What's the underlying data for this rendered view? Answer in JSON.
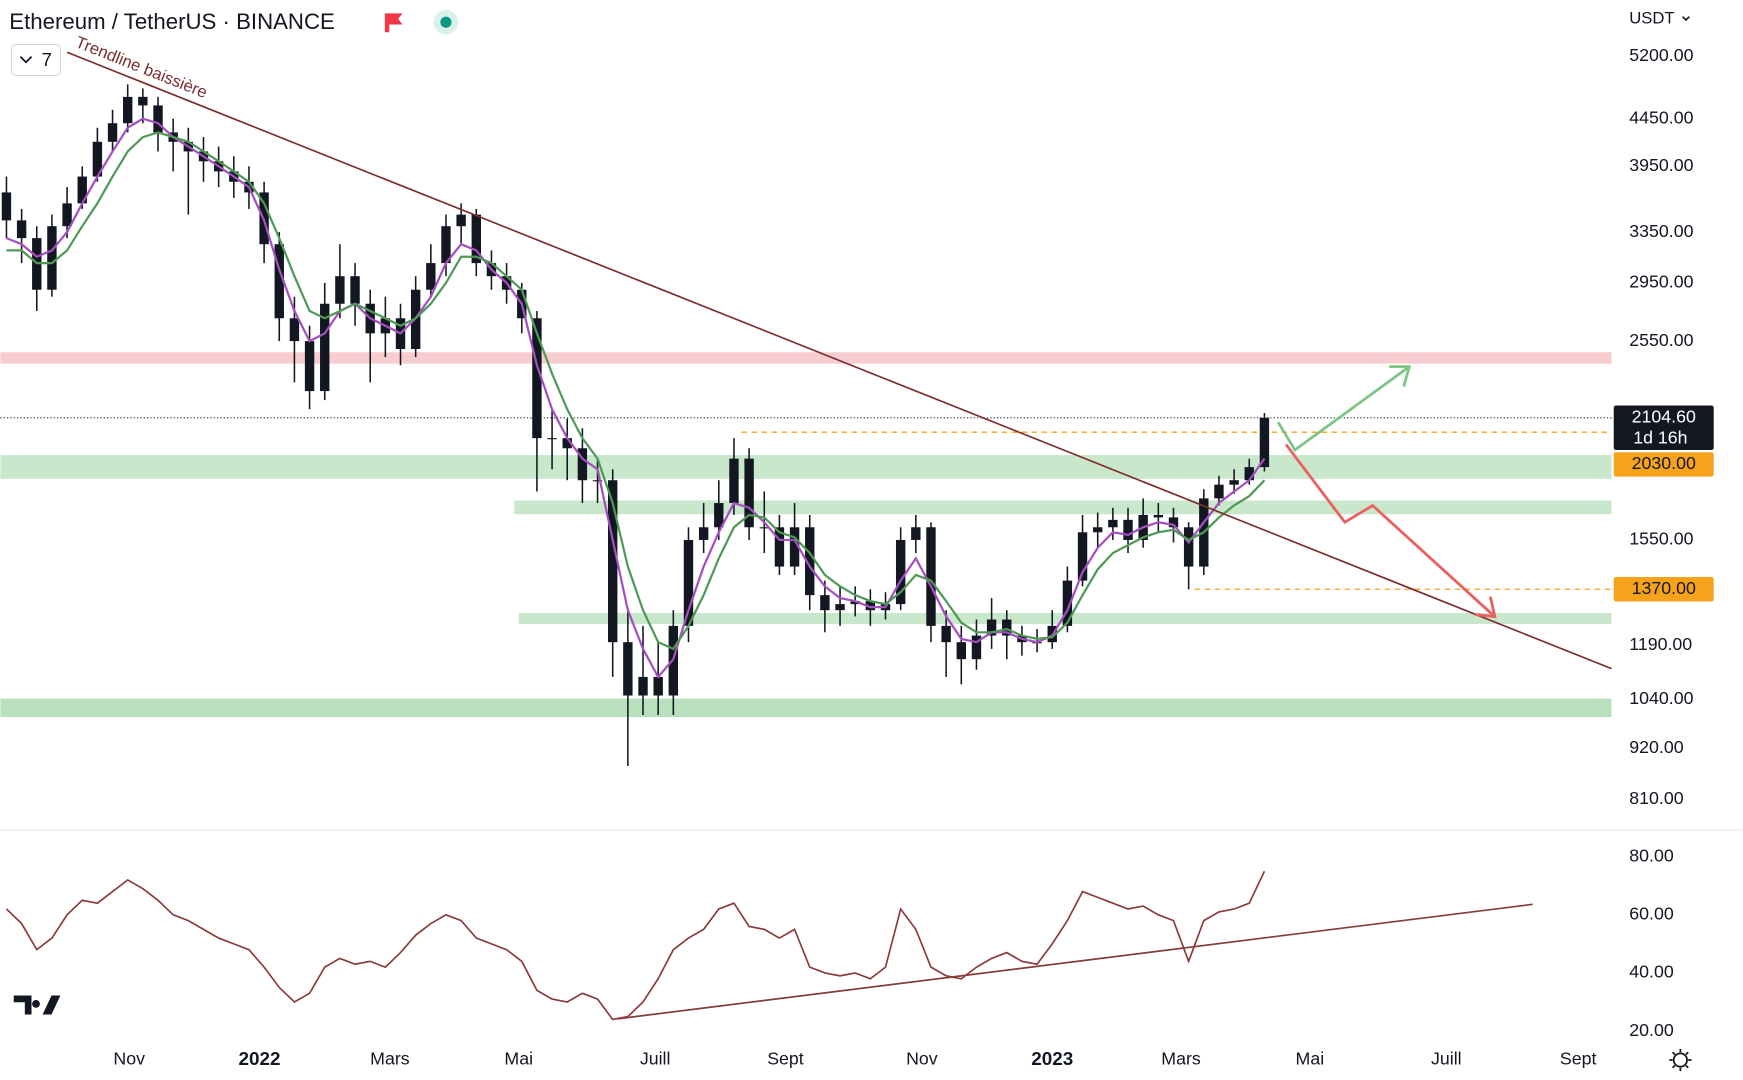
{
  "toolbar": {
    "indicators_count": "7",
    "currency": "USDT"
  },
  "chart_data": [
    {
      "type": "candlestick",
      "title": "Ethereum / TetherUS · BINANCE",
      "log_scale": true,
      "grid": false,
      "color": "#131722",
      "categories": [
        null,
        null,
        null,
        null,
        null,
        null,
        null,
        null,
        null,
        null,
        null,
        null,
        null,
        null,
        null,
        null,
        null,
        null,
        null,
        null,
        null,
        null,
        null,
        null,
        null,
        null,
        null,
        null,
        null,
        null,
        null,
        null,
        null,
        null,
        null,
        null,
        null,
        null,
        null,
        null,
        null,
        null,
        null,
        null,
        null,
        null,
        null,
        null,
        null,
        null,
        null,
        null,
        null,
        null,
        null,
        null,
        null,
        null,
        null,
        null,
        null,
        null,
        null,
        null,
        null,
        null,
        null,
        null,
        null,
        null,
        null,
        null,
        null,
        null,
        null,
        null,
        null,
        null,
        null,
        null,
        null,
        null,
        null,
        null
      ],
      "open": [
        3700,
        3450,
        3300,
        2900,
        3400,
        3600,
        3850,
        4200,
        4400,
        4700,
        4600,
        4300,
        4200,
        4100,
        4000,
        3900,
        3800,
        3700,
        3250,
        2700,
        2550,
        2250,
        2800,
        3000,
        2800,
        2600,
        2700,
        2500,
        2900,
        3100,
        3400,
        3500,
        3100,
        3000,
        2900,
        2700,
        2000,
        2000,
        1950,
        1800,
        1800,
        1200,
        1050,
        1100,
        1050,
        1250,
        1550,
        1600,
        1700,
        1900,
        1600,
        1600,
        1450,
        1600,
        1350,
        1300,
        1320,
        1330,
        1300,
        1320,
        1550,
        1600,
        1250,
        1200,
        1150,
        1220,
        1270,
        1220,
        1200,
        1200,
        1250,
        1400,
        1580,
        1600,
        1630,
        1550,
        1650,
        1640,
        1600,
        1450,
        1720,
        1780,
        1800,
        1860
      ],
      "high": [
        3850,
        3550,
        3400,
        3500,
        3750,
        3950,
        4350,
        4550,
        4850,
        4800,
        4700,
        4450,
        4350,
        4250,
        4150,
        4050,
        3950,
        3800,
        3350,
        2850,
        2650,
        2950,
        3250,
        3100,
        2900,
        2850,
        2800,
        3000,
        3250,
        3500,
        3600,
        3550,
        3200,
        3100,
        2950,
        2750,
        2150,
        2100,
        2050,
        1900,
        1850,
        1300,
        1250,
        1200,
        1300,
        1600,
        1700,
        1800,
        2000,
        1950,
        1750,
        1650,
        1700,
        1650,
        1400,
        1380,
        1380,
        1370,
        1360,
        1600,
        1650,
        1620,
        1300,
        1250,
        1270,
        1340,
        1300,
        1250,
        1240,
        1300,
        1450,
        1650,
        1660,
        1680,
        1680,
        1720,
        1700,
        1680,
        1620,
        1760,
        1820,
        1850,
        1900,
        2130
      ],
      "low": [
        3300,
        3100,
        2750,
        2850,
        3300,
        3550,
        3800,
        4100,
        4300,
        4400,
        4100,
        3900,
        3500,
        3800,
        3750,
        3650,
        3550,
        3100,
        2550,
        2300,
        2150,
        2200,
        2700,
        2650,
        2300,
        2450,
        2400,
        2450,
        2850,
        3000,
        3250,
        3000,
        2900,
        2800,
        2600,
        1750,
        1850,
        1800,
        1700,
        1700,
        1100,
        880,
        1000,
        1000,
        1000,
        1200,
        1500,
        1550,
        1650,
        1550,
        1500,
        1420,
        1420,
        1300,
        1230,
        1250,
        1280,
        1250,
        1270,
        1300,
        1500,
        1200,
        1100,
        1080,
        1120,
        1180,
        1150,
        1160,
        1170,
        1180,
        1230,
        1380,
        1520,
        1550,
        1500,
        1520,
        1580,
        1540,
        1370,
        1420,
        1690,
        1740,
        1780,
        1840
      ],
      "close": [
        3450,
        3300,
        2900,
        3400,
        3600,
        3850,
        4200,
        4400,
        4700,
        4600,
        4300,
        4200,
        4100,
        4000,
        3900,
        3800,
        3700,
        3250,
        2700,
        2550,
        2250,
        2800,
        3000,
        2800,
        2600,
        2700,
        2500,
        2900,
        3100,
        3400,
        3500,
        3100,
        3000,
        2900,
        2700,
        2000,
        2000,
        1950,
        1800,
        1800,
        1200,
        1050,
        1100,
        1050,
        1250,
        1550,
        1600,
        1700,
        1900,
        1600,
        1600,
        1450,
        1600,
        1350,
        1300,
        1320,
        1330,
        1300,
        1320,
        1550,
        1600,
        1250,
        1200,
        1150,
        1220,
        1270,
        1220,
        1200,
        1200,
        1250,
        1400,
        1580,
        1600,
        1630,
        1550,
        1650,
        1640,
        1600,
        1450,
        1720,
        1780,
        1800,
        1860,
        2104.6
      ],
      "lines": [
        {
          "color": "#a34fc0",
          "values": [
            3300,
            3250,
            3150,
            3200,
            3350,
            3600,
            3850,
            4100,
            4350,
            4450,
            4400,
            4250,
            4150,
            4050,
            3950,
            3850,
            3750,
            3450,
            3050,
            2750,
            2550,
            2600,
            2750,
            2800,
            2700,
            2650,
            2600,
            2700,
            2850,
            3100,
            3250,
            3200,
            3050,
            2950,
            2800,
            2400,
            2150,
            2000,
            1900,
            1850,
            1550,
            1300,
            1180,
            1100,
            1150,
            1300,
            1450,
            1580,
            1700,
            1680,
            1620,
            1550,
            1550,
            1450,
            1380,
            1340,
            1330,
            1310,
            1310,
            1400,
            1480,
            1380,
            1280,
            1210,
            1200,
            1230,
            1230,
            1210,
            1200,
            1220,
            1300,
            1430,
            1520,
            1580,
            1570,
            1600,
            1620,
            1610,
            1540,
            1620,
            1700,
            1750,
            1800,
            1900
          ]
        },
        {
          "color": "#4e9a55",
          "values": [
            3200,
            3200,
            3100,
            3100,
            3200,
            3400,
            3600,
            3850,
            4100,
            4250,
            4300,
            4250,
            4200,
            4100,
            4000,
            3900,
            3800,
            3600,
            3300,
            3000,
            2750,
            2700,
            2750,
            2800,
            2750,
            2700,
            2650,
            2700,
            2800,
            2950,
            3150,
            3150,
            3100,
            3000,
            2900,
            2600,
            2350,
            2150,
            2000,
            1900,
            1700,
            1450,
            1300,
            1200,
            1180,
            1250,
            1350,
            1480,
            1600,
            1650,
            1640,
            1580,
            1560,
            1500,
            1420,
            1380,
            1350,
            1330,
            1320,
            1360,
            1420,
            1400,
            1330,
            1260,
            1230,
            1230,
            1240,
            1220,
            1210,
            1215,
            1260,
            1350,
            1440,
            1500,
            1530,
            1560,
            1580,
            1590,
            1550,
            1580,
            1640,
            1690,
            1730,
            1800
          ]
        }
      ],
      "xlim": [
        -0.4,
        105.9
      ],
      "xticks": [
        {
          "value": 8.1,
          "label": "Nov"
        },
        {
          "value": 16.7,
          "label": "2022"
        },
        {
          "value": 25.3,
          "label": "Mars"
        },
        {
          "value": 33.8,
          "label": "Mai"
        },
        {
          "value": 42.8,
          "label": "Juill"
        },
        {
          "value": 51.4,
          "label": "Sept"
        },
        {
          "value": 60.4,
          "label": "Nov"
        },
        {
          "value": 69,
          "label": "2023"
        },
        {
          "value": 77.5,
          "label": "Mars"
        },
        {
          "value": 86,
          "label": "Mai"
        },
        {
          "value": 95,
          "label": "Juill"
        },
        {
          "value": 103.7,
          "label": "Sept"
        }
      ],
      "ylim": [
        754,
        5990
      ],
      "yticks": [
        {
          "value": 5200,
          "label": "5200.00"
        },
        {
          "value": 4450,
          "label": "4450.00"
        },
        {
          "value": 3950,
          "label": "3950.00"
        },
        {
          "value": 3350,
          "label": "3350.00"
        },
        {
          "value": 2950,
          "label": "2950.00"
        },
        {
          "value": 2550,
          "label": "2550.00"
        },
        {
          "value": 1550,
          "label": "1550.00"
        },
        {
          "value": 1190,
          "label": "1190.00"
        },
        {
          "value": 1040,
          "label": "1040.00"
        },
        {
          "value": 920,
          "label": "920.00"
        },
        {
          "value": 810,
          "label": "810.00"
        }
      ],
      "zones": [
        {
          "from": -0.4,
          "low": 2410,
          "high": 2480,
          "color": "#f8cdd0"
        },
        {
          "from": -0.4,
          "low": 1806,
          "high": 1917,
          "color": "#c9e7cb"
        },
        {
          "from": 33.5,
          "low": 1653,
          "high": 1711,
          "color": "#c9e7cb"
        },
        {
          "from": 33.8,
          "low": 1256,
          "high": 1291,
          "color": "#c9e7cb"
        },
        {
          "from": -0.4,
          "low": 995,
          "high": 1042,
          "color": "#b9e0bc"
        }
      ],
      "levels": [
        {
          "value": 2030,
          "from": 48.5,
          "color": "#f7a21b"
        },
        {
          "value": 1370,
          "from": 78.4,
          "color": "#f7a21b"
        }
      ],
      "price_labels": [
        {
          "value": 2104.6,
          "label": "2104.60",
          "sub": "1d 16h",
          "color": "#131722",
          "text_color": "#ffffff"
        },
        {
          "value": 2030,
          "label": "2030.00",
          "color": "#f7a21b",
          "text_color": "#131722"
        },
        {
          "value": 1370,
          "label": "1370.00",
          "color": "#f7a21b",
          "text_color": "#131722"
        }
      ],
      "trendlines": [
        {
          "label": "Trendline baissière",
          "x": [
            4,
            105.9
          ],
          "y": [
            5255,
            1123
          ],
          "color": "#7b2d2d"
        }
      ]
    },
    {
      "type": "line",
      "color": "#8b3a3a",
      "values": [
        62,
        57,
        48,
        52,
        60,
        65,
        64,
        68,
        72,
        69,
        65,
        60,
        58,
        55,
        52,
        50,
        48,
        42,
        35,
        30,
        33,
        42,
        45,
        43,
        44,
        42,
        47,
        53,
        57,
        60,
        58,
        52,
        50,
        48,
        44,
        34,
        31,
        30,
        33,
        31,
        24,
        25,
        30,
        38,
        48,
        52,
        55,
        62,
        64,
        56,
        55,
        52,
        55,
        42,
        40,
        39,
        40,
        38,
        42,
        62,
        55,
        42,
        39,
        38,
        42,
        45,
        47,
        44,
        43,
        50,
        58,
        68,
        66,
        64,
        62,
        63,
        60,
        58,
        44,
        58,
        61,
        62,
        64,
        75
      ],
      "ylim": [
        15.4,
        88.8
      ],
      "yticks": [
        {
          "value": 80,
          "label": "80.00"
        },
        {
          "value": 60,
          "label": "60.00"
        },
        {
          "value": 40,
          "label": "40.00"
        },
        {
          "value": 20,
          "label": "20.00"
        }
      ],
      "trendlines": [
        {
          "x": [
            40.3,
            100.7
          ],
          "y": [
            24.2,
            63.6
          ],
          "color": "#8b3a3a"
        }
      ]
    }
  ]
}
